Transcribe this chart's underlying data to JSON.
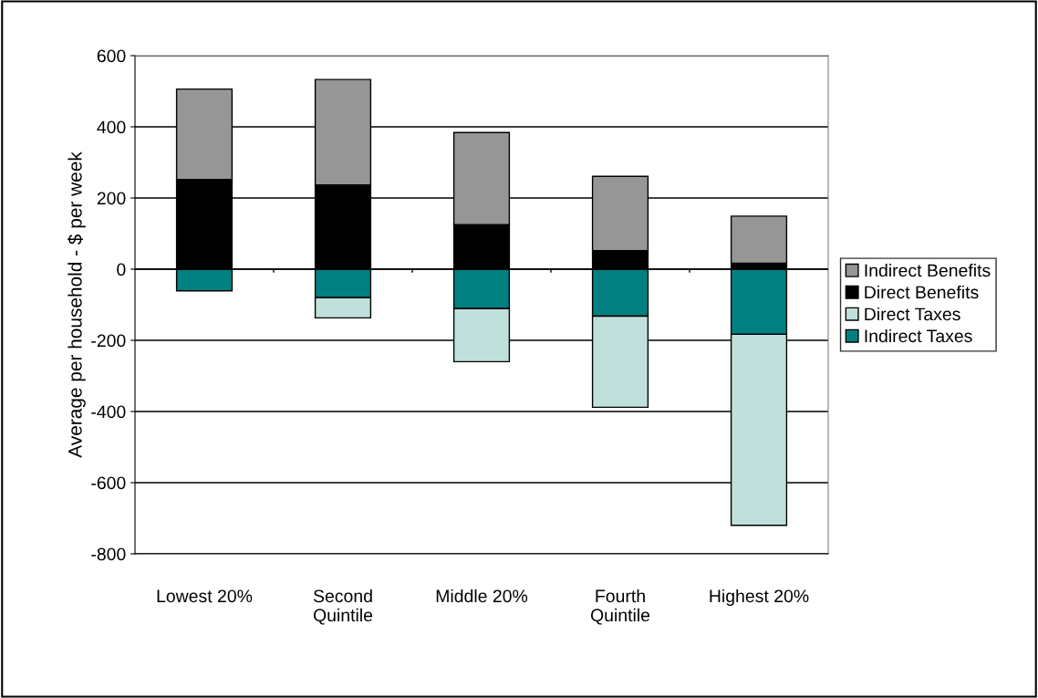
{
  "chart_data": {
    "type": "bar",
    "stacked": true,
    "ylabel": "Average per household - $ per week",
    "categories": [
      "Lowest 20%",
      "Second\nQuintile",
      "Middle 20%",
      "Fourth\nQuintile",
      "Highest 20%"
    ],
    "series": [
      {
        "name": "Indirect Taxes",
        "color": "#008080",
        "values": [
          -61,
          -80,
          -111,
          -132,
          -183
        ]
      },
      {
        "name": "Direct Taxes",
        "color": "#c0e0dc",
        "values": [
          0,
          -57,
          -149,
          -256,
          -537
        ]
      },
      {
        "name": "Direct Benefits",
        "color": "#000000",
        "values": [
          252,
          237,
          125,
          52,
          17
        ]
      },
      {
        "name": "Indirect Benefits",
        "color": "#969696",
        "values": [
          254,
          296,
          259,
          209,
          132
        ]
      }
    ],
    "ylim": [
      -800,
      600
    ],
    "yticks": [
      -800,
      -600,
      -400,
      -200,
      0,
      200,
      400,
      600
    ],
    "grid": "y",
    "legend": "right"
  }
}
